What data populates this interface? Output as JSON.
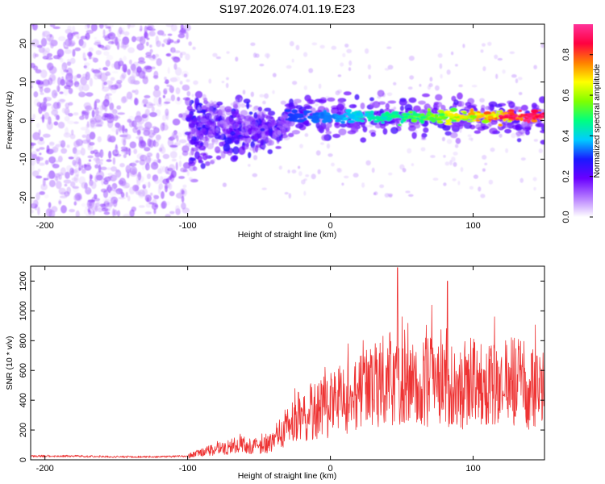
{
  "title": "S197.2026.074.01.19.E23",
  "chart_data": [
    {
      "type": "heatmap",
      "description_label": "spectrogram",
      "xlabel": "Height of straight line (km)",
      "ylabel": "Frequency (Hz)",
      "xlim": [
        -210,
        150
      ],
      "ylim": [
        -25,
        25
      ],
      "x_ticks": [
        -200,
        -100,
        0,
        100
      ],
      "y_ticks": [
        -20,
        -10,
        0,
        10,
        20
      ],
      "colorbar": {
        "label": "Normalized spectral amplitude",
        "range": [
          0.0,
          0.95
        ],
        "ticks": [
          0.0,
          0.2,
          0.4,
          0.6,
          0.8
        ],
        "tick_labels": [
          "0.0",
          "0.2",
          "0.4",
          "0.6",
          "0.8"
        ],
        "colormap": [
          "#ffffff",
          "#b57bff",
          "#6a00ff",
          "#1a1aff",
          "#00ccff",
          "#00ff80",
          "#80ff00",
          "#ffff00",
          "#ff8000",
          "#ff0040",
          "#ff3399"
        ]
      },
      "features": [
        {
          "name": "diffuse noise",
          "x_range": [
            -210,
            -100
          ],
          "freq_range": [
            -25,
            25
          ],
          "amplitude": 0.1
        },
        {
          "name": "transition scatter",
          "x_range": [
            -100,
            -30
          ],
          "freq_range": [
            -14,
            5
          ],
          "amplitude": 0.15
        },
        {
          "name": "signal band",
          "x_range": [
            -30,
            150
          ],
          "freq_center": 1,
          "amplitude_start": 0.3,
          "amplitude_end": 0.95
        }
      ]
    },
    {
      "type": "line",
      "xlabel": "Height of straight line (km)",
      "ylabel": "SNR (10 * v/v)",
      "xlim": [
        -210,
        150
      ],
      "ylim": [
        0,
        1300
      ],
      "x_ticks": [
        -200,
        -100,
        0,
        100
      ],
      "y_ticks": [
        0,
        200,
        400,
        600,
        800,
        1000,
        1200
      ],
      "color": "#ee3333",
      "series": [
        {
          "name": "SNR",
          "x": [
            -210,
            -180,
            -150,
            -120,
            -100,
            -90,
            -80,
            -70,
            -60,
            -50,
            -40,
            -30,
            -20,
            -10,
            0,
            10,
            20,
            30,
            40,
            50,
            60,
            70,
            80,
            90,
            100,
            110,
            120,
            130,
            140,
            150
          ],
          "values": [
            25,
            25,
            20,
            20,
            25,
            60,
            80,
            100,
            120,
            100,
            150,
            280,
            350,
            380,
            420,
            480,
            500,
            550,
            620,
            580,
            560,
            600,
            650,
            580,
            600,
            550,
            580,
            600,
            560,
            550
          ],
          "peaks": [
            {
              "x": 47,
              "y": 1290
            },
            {
              "x": 82,
              "y": 1200
            },
            {
              "x": 115,
              "y": 960
            }
          ]
        }
      ]
    }
  ]
}
